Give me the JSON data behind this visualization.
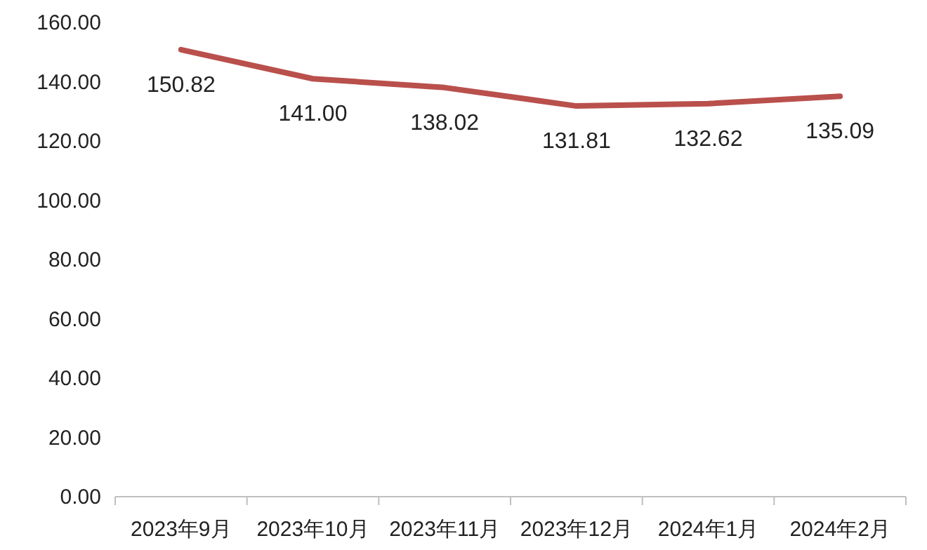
{
  "chart_data": {
    "type": "line",
    "categories": [
      "2023年9月",
      "2023年10月",
      "2023年11月",
      "2023年12月",
      "2024年1月",
      "2024年2月"
    ],
    "values": [
      150.82,
      141.0,
      138.02,
      131.81,
      132.62,
      135.09
    ],
    "value_labels": [
      "150.82",
      "141.00",
      "138.02",
      "131.81",
      "132.62",
      "135.09"
    ],
    "color": "#b9504c",
    "ylim": [
      0,
      160
    ],
    "yticks": [
      {
        "value": 0,
        "label": "0.00"
      },
      {
        "value": 20,
        "label": "20.00"
      },
      {
        "value": 40,
        "label": "40.00"
      },
      {
        "value": 60,
        "label": "60.00"
      },
      {
        "value": 80,
        "label": "80.00"
      },
      {
        "value": 100,
        "label": "100.00"
      },
      {
        "value": 120,
        "label": "120.00"
      },
      {
        "value": 140,
        "label": "140.00"
      },
      {
        "value": 160,
        "label": "160.00"
      }
    ],
    "grid": false,
    "marker": "none",
    "line_style": "solid"
  }
}
